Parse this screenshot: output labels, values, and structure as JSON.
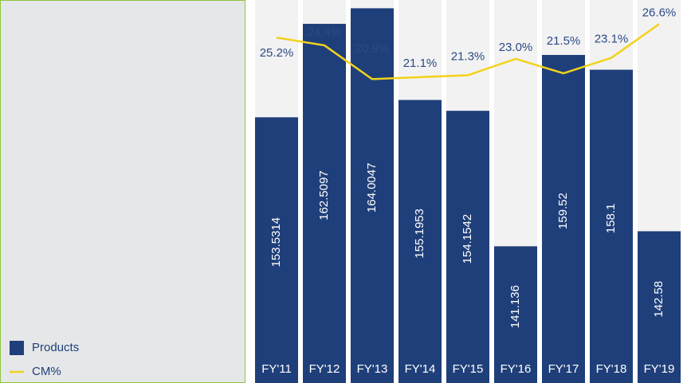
{
  "chart_data": {
    "type": "bar",
    "categories": [
      "FY'11",
      "FY'12",
      "FY'13",
      "FY'14",
      "FY'15",
      "FY'16",
      "FY'17",
      "FY'18",
      "FY'19"
    ],
    "series": [
      {
        "name": "Products",
        "type": "bar",
        "color": "#1f3f7a",
        "values": [
          153.5314,
          162.5097,
          164.0047,
          155.1953,
          154.1542,
          141.136,
          159.52,
          158.1,
          142.58
        ]
      },
      {
        "name": "CM%",
        "type": "line",
        "axis": "y2",
        "color": "#f2d21b",
        "values": [
          25.2,
          24.4,
          20.9,
          21.1,
          21.3,
          23.0,
          21.5,
          23.1,
          26.6
        ],
        "value_labels": [
          "25.2%",
          "24.4%",
          "20.9%",
          "21.1%",
          "21.3%",
          "23.0%",
          "21.5%",
          "23.1%",
          "26.6%"
        ]
      }
    ],
    "ylim": [
      128,
      164.8
    ],
    "y2lim": [
      -10.6,
      29.1
    ],
    "legend": "bottom-left"
  }
}
